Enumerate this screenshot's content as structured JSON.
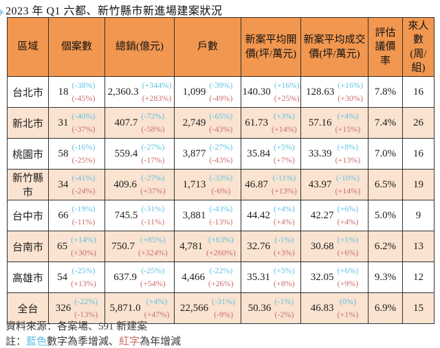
{
  "title": "2023 年 Q1 六都、新竹縣市新進場建案狀況",
  "colors": {
    "header_bg": "#F29750",
    "alt_row_bg": "#FAE3D0",
    "quarter_change_blue": "#62C2E2",
    "year_change_red": "#C96F6F",
    "border": "#2F2F2F"
  },
  "table": {
    "columns": [
      "區域",
      "個案數",
      "總銷(億元)",
      "戶數",
      "新案平均開價(坪/萬元)",
      "新案平均成交價(坪/萬元)",
      "評估議價率",
      "來人數(周/組)"
    ],
    "rows": [
      {
        "region": "台北市",
        "cases": {
          "value": "18",
          "q": "(-38%)",
          "y": "(-45%)"
        },
        "sales": {
          "value": "2,360.3",
          "q": "(+344%)",
          "y": "(+283%)"
        },
        "units": {
          "value": "1,099",
          "q": "(-39%)",
          "y": "(-49%)"
        },
        "open_price": {
          "value": "140.30",
          "q": "(+16%)",
          "y": "(+25%)"
        },
        "deal_price": {
          "value": "128.63",
          "q": "(+16%)",
          "y": "(+30%)"
        },
        "nego_rate": "7.8%",
        "visitors": "16"
      },
      {
        "region": "新北市",
        "cases": {
          "value": "31",
          "q": "(-40%)",
          "y": "(-37%)"
        },
        "sales": {
          "value": "407.7",
          "q": "(-72%)",
          "y": "(-58%)"
        },
        "units": {
          "value": "2,749",
          "q": "(-65%)",
          "y": "(-43%)"
        },
        "open_price": {
          "value": "61.73",
          "q": "(+3%)",
          "y": "(+14%)"
        },
        "deal_price": {
          "value": "57.16",
          "q": "(+4%)",
          "y": "(+15%)"
        },
        "nego_rate": "7.4%",
        "visitors": "26"
      },
      {
        "region": "桃園市",
        "cases": {
          "value": "58",
          "q": "(-16%)",
          "y": "(-25%)"
        },
        "sales": {
          "value": "559.4",
          "q": "(-27%)",
          "y": "(-17%)"
        },
        "units": {
          "value": "3,877",
          "q": "(-27%)",
          "y": "(-43%)"
        },
        "open_price": {
          "value": "35.84",
          "q": "(+5%)",
          "y": "(+7%)"
        },
        "deal_price": {
          "value": "33.39",
          "q": "(+8%)",
          "y": "(+13%)"
        },
        "nego_rate": "7.0%",
        "visitors": "16"
      },
      {
        "region": "新竹縣市",
        "cases": {
          "value": "34",
          "q": "(-41%)",
          "y": "(-24%)"
        },
        "sales": {
          "value": "409.6",
          "q": "(-27%)",
          "y": "(+37%)"
        },
        "units": {
          "value": "1,713",
          "q": "(-33%)",
          "y": "(-6%)"
        },
        "open_price": {
          "value": "46.87",
          "q": "(-11%)",
          "y": "(+13%)"
        },
        "deal_price": {
          "value": "43.97",
          "q": "(-10%)",
          "y": "(+14%)"
        },
        "nego_rate": "6.5%",
        "visitors": "19"
      },
      {
        "region": "台中市",
        "cases": {
          "value": "66",
          "q": "(-19%)",
          "y": "(-11%)"
        },
        "sales": {
          "value": "745.5",
          "q": "(-31%)",
          "y": "(-11%)"
        },
        "units": {
          "value": "3,881",
          "q": "(-43%)",
          "y": "(-13%)"
        },
        "open_price": {
          "value": "44.42",
          "q": "(+4%)",
          "y": "(+4%)"
        },
        "deal_price": {
          "value": "42.27",
          "q": "(+6%)",
          "y": "(+4%)"
        },
        "nego_rate": "5.0%",
        "visitors": "9"
      },
      {
        "region": "台南市",
        "cases": {
          "value": "65",
          "q": "(+14%)",
          "y": "(+30%)"
        },
        "sales": {
          "value": "750.7",
          "q": "(+85%)",
          "y": "(+324%)"
        },
        "units": {
          "value": "4,781",
          "q": "(+63%)",
          "y": "(+260%)"
        },
        "open_price": {
          "value": "32.76",
          "q": "(-1%)",
          "y": "(+3%)"
        },
        "deal_price": {
          "value": "30.68",
          "q": "(+1%)",
          "y": "(+6%)"
        },
        "nego_rate": "6.2%",
        "visitors": "13"
      },
      {
        "region": "高雄市",
        "cases": {
          "value": "54",
          "q": "(-25%)",
          "y": "(+13%)"
        },
        "sales": {
          "value": "637.9",
          "q": "(-25%)",
          "y": "(+54%)"
        },
        "units": {
          "value": "4,466",
          "q": "(-22%)",
          "y": "(+26%)"
        },
        "open_price": {
          "value": "35.31",
          "q": "(+5%)",
          "y": "(+8%)"
        },
        "deal_price": {
          "value": "32.05",
          "q": "(+6%)",
          "y": "(+9%)"
        },
        "nego_rate": "9.3%",
        "visitors": "12"
      },
      {
        "region": "全台",
        "cases": {
          "value": "326",
          "q": "(-22%)",
          "y": "(-13%)"
        },
        "sales": {
          "value": "5,871.0",
          "q": "(+4%)",
          "y": "(+47%)"
        },
        "units": {
          "value": "22,566",
          "q": "(-31%)",
          "y": "(-9%)"
        },
        "open_price": {
          "value": "50.36",
          "q": "(-1%)",
          "y": "(-2%)"
        },
        "deal_price": {
          "value": "46.83",
          "q": "(0%)",
          "y": "(+1%)"
        },
        "nego_rate": "6.9%",
        "visitors": "15"
      }
    ]
  },
  "footer": {
    "source": "資料來源：各案場、591 新建案",
    "note_prefix": "註：",
    "note_blue": "藍色",
    "note_mid": "數字為季增減、",
    "note_red": "紅字",
    "note_suffix": "為年增減"
  }
}
